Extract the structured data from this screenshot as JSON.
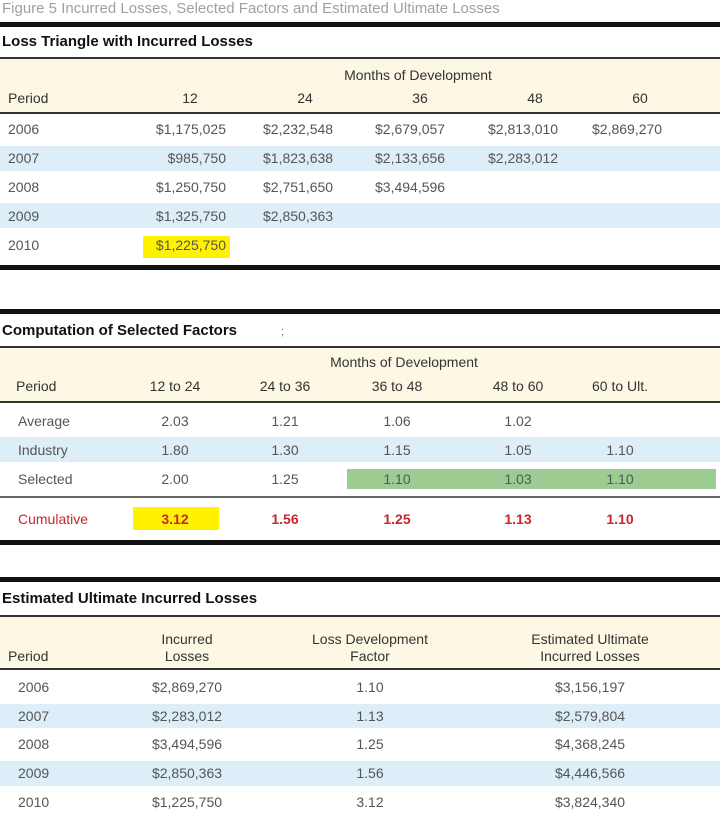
{
  "figure_title": "Figure 5 Incurred Losses,  Selected Factors and Estimated Ultimate Losses",
  "triangle": {
    "title": "Loss Triangle with Incurred Losses",
    "group_header": "Months of Development",
    "headers": [
      "Period",
      "12",
      "24",
      "36",
      "48",
      "60"
    ],
    "rows": [
      [
        "2006",
        "$1,175,025",
        "$2,232,548",
        "$2,679,057",
        "$2,813,010",
        "$2,869,270"
      ],
      [
        "2007",
        "$985,750",
        "$1,823,638",
        "$2,133,656",
        "$2,283,012",
        ""
      ],
      [
        "2008",
        "$1,250,750",
        "$2,751,650",
        "$3,494,596",
        "",
        ""
      ],
      [
        "2009",
        "$1,325,750",
        "$2,850,363",
        "",
        "",
        ""
      ],
      [
        "2010",
        "$1,225,750",
        "",
        "",
        "",
        ""
      ]
    ],
    "highlight_color": "#fff200"
  },
  "factors": {
    "title": "Computation of Selected Factors",
    "title_mark": ";",
    "group_header": "Months of Development",
    "headers": [
      "Period",
      "12 to 24",
      "24 to 36",
      "36 to 48",
      "48 to 60",
      "60 to Ult."
    ],
    "rows": [
      [
        "Average",
        "2.03",
        "1.21",
        "1.06",
        "1.02",
        ""
      ],
      [
        "Industry",
        "1.80",
        "1.30",
        "1.15",
        "1.05",
        "1.10"
      ],
      [
        "Selected",
        "2.00",
        "1.25",
        "1.10",
        "1.03",
        "1.10"
      ]
    ],
    "cumulative": [
      "Cumulative",
      "3.12",
      "1.56",
      "1.25",
      "1.13",
      "1.10"
    ],
    "cumulative_color": "#c8262c",
    "selected_highlight_color": "#9ccc94"
  },
  "ultimate": {
    "title": "Estimated Ultimate Incurred Losses",
    "headers": [
      {
        "line1": "",
        "line2": "Period"
      },
      {
        "line1": "Incurred",
        "line2": "Losses"
      },
      {
        "line1": "Loss Development",
        "line2": "Factor"
      },
      {
        "line1": "Estimated Ultimate",
        "line2": "Incurred Losses"
      }
    ],
    "rows": [
      [
        "2006",
        "$2,869,270",
        "1.10",
        "$3,156,197"
      ],
      [
        "2007",
        "$2,283,012",
        "1.13",
        "$2,579,804"
      ],
      [
        "2008",
        "$3,494,596",
        "1.25",
        "$4,368,245"
      ],
      [
        "2009",
        "$2,850,363",
        "1.56",
        "$4,446,566"
      ],
      [
        "2010",
        "$1,225,750",
        "3.12",
        "$3,824,340"
      ]
    ]
  }
}
